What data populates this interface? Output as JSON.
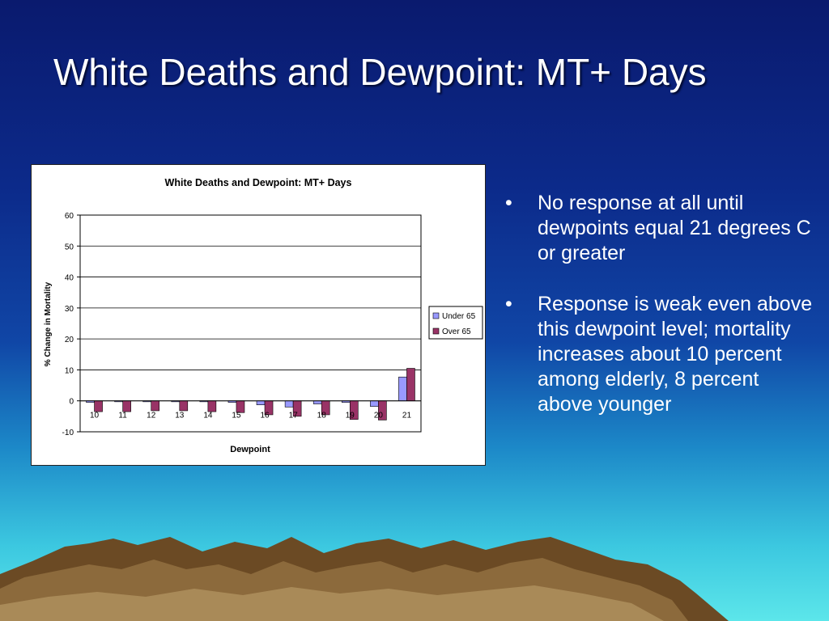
{
  "slide": {
    "title": "White Deaths and Dewpoint: MT+ Days",
    "bullets": [
      "No response at all until dewpoints equal 21 degrees C or greater",
      "Response is weak even above this dewpoint level; mortality increases about 10 percent among elderly, 8 percent above younger"
    ],
    "bullet_glyph": "•"
  },
  "chart_data": {
    "type": "bar",
    "title": "White Deaths and Dewpoint:  MT+ Days",
    "xlabel": "Dewpoint",
    "ylabel": "% Change in Mortality",
    "categories": [
      "10",
      "11",
      "12",
      "13",
      "14",
      "15",
      "16",
      "17",
      "18",
      "19",
      "20",
      "21"
    ],
    "series": [
      {
        "name": "Under 65",
        "color": "#9999ff",
        "values": [
          -0.5,
          -0.3,
          -0.3,
          -0.3,
          -0.3,
          -0.5,
          -1.3,
          -2.0,
          -1.0,
          -0.5,
          -1.8,
          7.7
        ]
      },
      {
        "name": "Over 65",
        "color": "#993366",
        "values": [
          -3.5,
          -3.5,
          -3.2,
          -3.2,
          -3.5,
          -3.8,
          -4.5,
          -5.0,
          -4.5,
          -6.0,
          -6.2,
          10.5
        ]
      }
    ],
    "ylim": [
      -10,
      60
    ],
    "yticks": [
      -10,
      0,
      10,
      20,
      30,
      40,
      50,
      60
    ],
    "grid": true,
    "legend": "right"
  }
}
